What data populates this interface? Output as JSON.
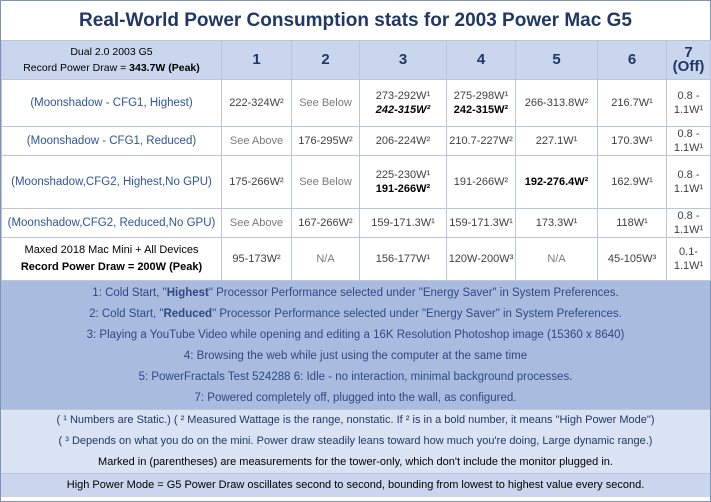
{
  "title": "Real-World Power Consumption stats for 2003 Power Mac G5",
  "header": {
    "desc_line1": "Dual 2.0 2003 G5",
    "desc_line2_prefix": "Record Power Draw = ",
    "desc_line2_value": "343.7W (Peak)",
    "columns": [
      "1",
      "2",
      "3",
      "4",
      "5",
      "6",
      "7 (Off)"
    ]
  },
  "rows": {
    "r1": {
      "label": "(Moonshadow - CFG1, Highest)",
      "c1": "222-324W²",
      "c2": "See Below",
      "c3a": "273-292W¹",
      "c3b": "242-315W²",
      "c4a": "275-298W¹",
      "c4b": "242-315W²",
      "c5": "266-313.8W²",
      "c6": "216.7W¹",
      "c7": "0.8 - 1.1W¹"
    },
    "r2": {
      "label": "(Moonshadow - CFG1, Reduced)",
      "c1": "See Above",
      "c2": "176-295W²",
      "c3": "206-224W²",
      "c4": "210.7-227W²",
      "c5": "227.1W¹",
      "c6": "170.3W¹",
      "c7": "0.8 - 1.1W¹"
    },
    "r3": {
      "label": "(Moonshadow,CFG2, Highest,No GPU)",
      "c1": "175-266W²",
      "c2": "See Below",
      "c3a": "225-230W¹",
      "c3b": "191-266W²",
      "c4": "191-266W²",
      "c5": "192-276.4W²",
      "c6": "162.9W¹",
      "c7": "0.8 - 1.1W¹"
    },
    "r4": {
      "label": "(Moonshadow,CFG2, Reduced,No GPU)",
      "c1": "See Above",
      "c2": "167-266W²",
      "c3": "159-171.3W¹",
      "c4": "159-171.3W¹",
      "c5": "173.3W¹",
      "c6": "118W¹",
      "c7": "0.8 - 1.1W¹"
    },
    "r5": {
      "label_line1": "Maxed 2018 Mac Mini + All Devices",
      "label_line2": "Record Power Draw = 200W (Peak)",
      "c1": "95-173W²",
      "c2": "N/A",
      "c3": "156-177W¹",
      "c4": "120W-200W³",
      "c5": "N/A",
      "c6": "45-105W³",
      "c7": "0.1-1.1W¹"
    }
  },
  "notes": {
    "n1_pre": "1: Cold Start, \"",
    "n1_bold": "Highest",
    "n1_post": "\" Processor Performance selected under \"Energy Saver\" in System Preferences.",
    "n2_pre": "2: Cold Start, \"",
    "n2_bold": "Reduced",
    "n2_post": "\" Processor Performance selected under \"Energy Saver\" in System Preferences.",
    "n3": "3: Playing a YouTube Video while opening and editing a 16K Resolution Photoshop image (15360 x 8640)",
    "n4": "4: Browsing the web while just using the computer at the same time",
    "n5": "5: PowerFractals Test 524288  6: Idle - no interaction, minimal background processes.",
    "n6": "7: Powered completely off, plugged into the wall, as configured."
  },
  "legend": {
    "l1": "( ¹ Numbers are Static.) ( ² Measured Wattage is the range, nonstatic. If ² is in a bold number, it means \"High Power Mode\")",
    "l2": "( ³ Depends on what you do on the mini. Power draw steadily leans toward how much you're doing, Large dynamic range.)",
    "l3": "Marked in (parentheses) are measurements for the tower-only, which don't include the monitor plugged in."
  },
  "footer": "High Power Mode = G5 Power Draw oscillates second to second, bounding from lowest to highest value every second.",
  "colors": {
    "title": "#1f3864",
    "header_bg": "#c9d6ee",
    "label_blue": "#2f5597",
    "notes_bg": "#aabbe0",
    "legend_bg": "#dae3f3"
  }
}
